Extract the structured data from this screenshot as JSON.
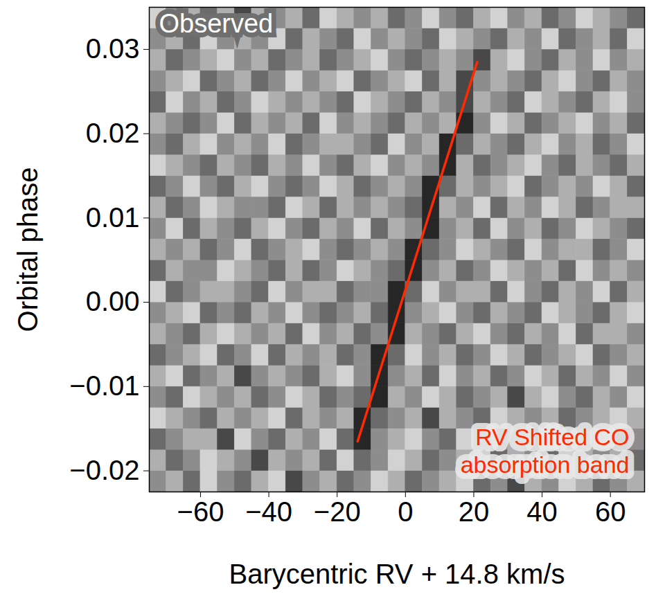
{
  "chart_data": {
    "type": "heatmap",
    "x_label": "Barycentric RV + 14.8 km/s",
    "y_label": "Orbital phase",
    "xlim": [
      -75,
      70
    ],
    "ylim": [
      -0.0225,
      0.035
    ],
    "xticks": [
      {
        "value": -60,
        "label": "−60"
      },
      {
        "value": -40,
        "label": "−40"
      },
      {
        "value": -20,
        "label": "−20"
      },
      0,
      20,
      40,
      60
    ],
    "yticks": [
      {
        "value": -0.02,
        "label": "−0.02"
      },
      {
        "value": -0.01,
        "label": "−0.01"
      },
      {
        "value": 0,
        "label": "0.00"
      },
      0.01,
      0.02,
      0.03
    ],
    "cells": {
      "x_edges": [
        -75,
        -70,
        -65,
        -60,
        -55,
        -50,
        -45,
        -40,
        -35,
        -30,
        -25,
        -20,
        -15,
        -10,
        -5,
        0,
        5,
        10,
        15,
        20,
        25,
        30,
        35,
        40,
        45,
        50,
        55,
        60,
        65,
        70
      ],
      "y_edges": [
        -0.0225,
        -0.02,
        -0.0175,
        -0.015,
        -0.0125,
        -0.01,
        -0.0075,
        -0.005,
        -0.0025,
        0,
        0.0025,
        0.005,
        0.0075,
        0.01,
        0.0125,
        0.015,
        0.0175,
        0.02,
        0.0225,
        0.025,
        0.0275,
        0.03,
        0.0325,
        0.035
      ],
      "zlim": [
        -3,
        3
      ],
      "values": [
        [
          0,
          1,
          -1,
          2,
          0,
          -1,
          1,
          2,
          -2,
          0,
          1,
          -1,
          0,
          2,
          1,
          -1,
          0,
          1,
          2,
          -1,
          0,
          -2,
          1,
          0,
          2,
          1,
          -1,
          0,
          1
        ],
        [
          1,
          -1,
          0,
          2,
          1,
          0,
          -2,
          1,
          0,
          1,
          -1,
          2,
          -1,
          0,
          2,
          1,
          -1,
          0,
          1,
          2,
          -1,
          1,
          0,
          -1,
          2,
          1,
          0,
          1,
          -1
        ],
        [
          -1,
          0,
          1,
          1,
          -2,
          2,
          0,
          -1,
          1,
          0,
          2,
          -1,
          -3,
          0,
          1,
          2,
          0,
          -1,
          2,
          1,
          0,
          1,
          -1,
          2,
          0,
          1,
          2,
          -1,
          0
        ],
        [
          2,
          1,
          0,
          -1,
          1,
          0,
          1,
          2,
          -1,
          1,
          0,
          1,
          -3,
          -1,
          0,
          1,
          -2,
          1,
          0,
          -1,
          2,
          1,
          0,
          1,
          -1,
          0,
          1,
          2,
          1
        ],
        [
          0,
          -1,
          2,
          1,
          0,
          1,
          -1,
          0,
          2,
          1,
          -1,
          0,
          -1,
          -3,
          1,
          0,
          2,
          1,
          -1,
          0,
          1,
          -2,
          1,
          2,
          0,
          -1,
          1,
          0,
          2
        ],
        [
          1,
          2,
          -1,
          0,
          1,
          -2,
          0,
          1,
          0,
          -1,
          1,
          2,
          0,
          -3,
          0,
          1,
          -1,
          2,
          0,
          1,
          -1,
          0,
          2,
          1,
          -1,
          1,
          0,
          2,
          0
        ],
        [
          -1,
          0,
          1,
          2,
          -1,
          0,
          2,
          -1,
          1,
          0,
          1,
          -1,
          0,
          -3,
          -1,
          2,
          0,
          1,
          -1,
          0,
          2,
          1,
          -1,
          0,
          1,
          2,
          -1,
          0,
          1
        ],
        [
          1,
          0,
          -1,
          1,
          2,
          1,
          0,
          1,
          -1,
          2,
          0,
          1,
          -1,
          0,
          -3,
          1,
          0,
          -1,
          1,
          2,
          0,
          -1,
          1,
          0,
          2,
          -1,
          1,
          1,
          0
        ],
        [
          0,
          1,
          2,
          -1,
          0,
          -1,
          1,
          0,
          2,
          0,
          -1,
          0,
          1,
          -1,
          -3,
          0,
          1,
          2,
          0,
          -1,
          1,
          0,
          -1,
          2,
          1,
          0,
          -1,
          1,
          2
        ],
        [
          2,
          -1,
          0,
          1,
          1,
          0,
          -1,
          2,
          0,
          1,
          1,
          -1,
          0,
          0,
          -3,
          -1,
          2,
          0,
          1,
          1,
          -1,
          2,
          0,
          -1,
          1,
          0,
          2,
          -1,
          1
        ],
        [
          -1,
          1,
          0,
          0,
          2,
          1,
          0,
          -1,
          1,
          -1,
          0,
          2,
          1,
          0,
          -1,
          -3,
          0,
          1,
          -1,
          0,
          2,
          1,
          0,
          1,
          -1,
          2,
          0,
          1,
          0
        ],
        [
          1,
          0,
          1,
          -1,
          0,
          2,
          -1,
          0,
          1,
          2,
          0,
          -1,
          0,
          1,
          0,
          -3,
          -1,
          0,
          2,
          1,
          0,
          -1,
          2,
          0,
          1,
          1,
          -1,
          0,
          2
        ],
        [
          0,
          2,
          -1,
          1,
          0,
          -1,
          1,
          2,
          0,
          -1,
          1,
          0,
          2,
          -1,
          1,
          0,
          -3,
          0,
          1,
          -1,
          2,
          0,
          1,
          -1,
          0,
          2,
          1,
          0,
          -1
        ],
        [
          1,
          -1,
          0,
          2,
          1,
          0,
          0,
          -1,
          2,
          1,
          -1,
          1,
          0,
          1,
          0,
          -1,
          -3,
          1,
          0,
          2,
          -1,
          1,
          0,
          2,
          1,
          -1,
          0,
          1,
          1
        ],
        [
          -1,
          0,
          2,
          0,
          -1,
          1,
          2,
          0,
          -1,
          0,
          2,
          1,
          -1,
          0,
          1,
          0,
          -3,
          -1,
          1,
          0,
          1,
          2,
          -1,
          0,
          1,
          0,
          2,
          1,
          -1
        ],
        [
          2,
          1,
          0,
          -1,
          1,
          0,
          -1,
          1,
          0,
          2,
          0,
          -1,
          1,
          2,
          0,
          1,
          0,
          -3,
          1,
          -1,
          0,
          1,
          2,
          0,
          -1,
          1,
          0,
          -1,
          1
        ],
        [
          0,
          -1,
          1,
          2,
          0,
          1,
          0,
          2,
          -1,
          0,
          1,
          1,
          0,
          -1,
          2,
          0,
          1,
          -3,
          -1,
          1,
          0,
          -1,
          1,
          2,
          0,
          1,
          -1,
          0,
          2
        ],
        [
          1,
          0,
          -1,
          0,
          2,
          -1,
          1,
          0,
          1,
          -1,
          2,
          0,
          1,
          0,
          -1,
          1,
          0,
          1,
          -3,
          0,
          2,
          1,
          -1,
          0,
          1,
          2,
          0,
          1,
          -1
        ],
        [
          -1,
          2,
          0,
          1,
          -1,
          0,
          2,
          1,
          0,
          1,
          0,
          -1,
          2,
          1,
          0,
          -1,
          1,
          0,
          -2,
          1,
          0,
          -1,
          2,
          1,
          0,
          -1,
          1,
          2,
          0
        ],
        [
          0,
          1,
          2,
          -1,
          0,
          1,
          -1,
          0,
          2,
          0,
          1,
          2,
          -1,
          0,
          1,
          2,
          -1,
          1,
          -2,
          0,
          1,
          0,
          -1,
          1,
          2,
          0,
          -1,
          1,
          0
        ],
        [
          1,
          -1,
          0,
          1,
          2,
          0,
          1,
          -1,
          0,
          1,
          -1,
          0,
          1,
          2,
          0,
          -1,
          0,
          1,
          0,
          -2,
          1,
          2,
          0,
          -1,
          1,
          0,
          2,
          0,
          1
        ],
        [
          0,
          1,
          -1,
          2,
          0,
          1,
          0,
          2,
          -1,
          1,
          0,
          -1,
          2,
          0,
          1,
          0,
          -1,
          2,
          1,
          0,
          -1,
          1,
          0,
          2,
          -1,
          0,
          1,
          -1,
          2
        ],
        [
          2,
          0,
          1,
          -1,
          1,
          -2,
          1,
          0,
          1,
          -1,
          2,
          1,
          0,
          1,
          -1,
          0,
          2,
          0,
          -1,
          1,
          2,
          0,
          1,
          -1,
          0,
          2,
          1,
          0,
          -1
        ]
      ]
    },
    "annotations": [
      {
        "text": "Observed"
      },
      {
        "text": "RV Shifted CO\nabsorption band",
        "color": "#ff2a00"
      }
    ],
    "line": {
      "x": [
        -14,
        21
      ],
      "y": [
        -0.0165,
        0.0285
      ],
      "color": "#ff2a00"
    }
  }
}
